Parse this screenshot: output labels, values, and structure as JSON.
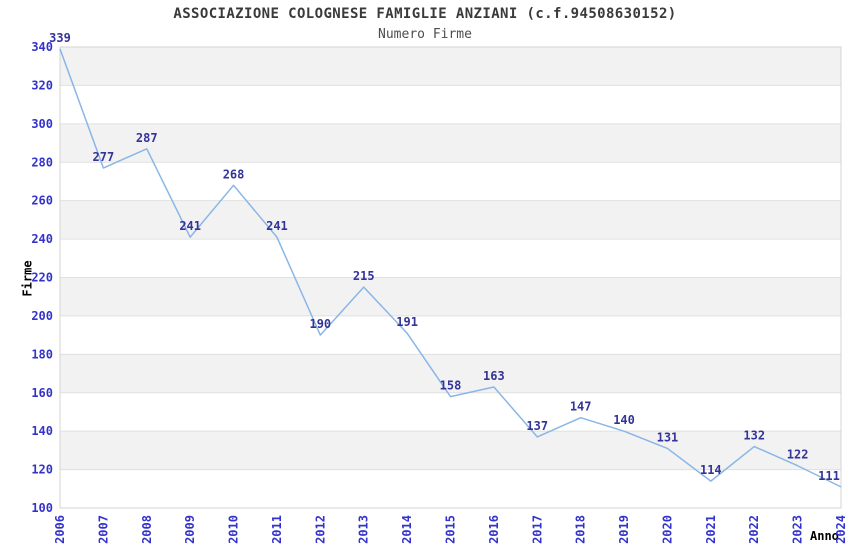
{
  "chart_data": {
    "type": "line",
    "title": "ASSOCIAZIONE COLOGNESE FAMIGLIE ANZIANI (c.f.94508630152)",
    "subtitle": "Numero Firme",
    "xlabel": "Anno",
    "ylabel": "Firme",
    "categories": [
      "2006",
      "2007",
      "2008",
      "2009",
      "2010",
      "2011",
      "2012",
      "2013",
      "2014",
      "2015",
      "2016",
      "2017",
      "2018",
      "2019",
      "2020",
      "2021",
      "2022",
      "2023",
      "2024"
    ],
    "values": [
      339,
      277,
      287,
      241,
      268,
      241,
      190,
      215,
      191,
      158,
      163,
      137,
      147,
      140,
      131,
      114,
      132,
      122,
      111
    ],
    "ylim": [
      100,
      340
    ],
    "ytick_step": 20,
    "grid": "horizontal-alternating-bands",
    "legend_position": "none",
    "markers": "none",
    "x_tick_rotation": -90,
    "colors": {
      "line": "#89b6e6",
      "data_label": "#333399",
      "tick_label": "#3333cc",
      "band_gray": "#f2f2f2",
      "band_white": "#ffffff",
      "grid_line": "#e0e0e0",
      "plot_border": "#d4d4d4",
      "title": "#3a3a3a",
      "subtitle": "#4d4d4d",
      "axis_title": "#000000",
      "background": "#ffffff"
    }
  }
}
